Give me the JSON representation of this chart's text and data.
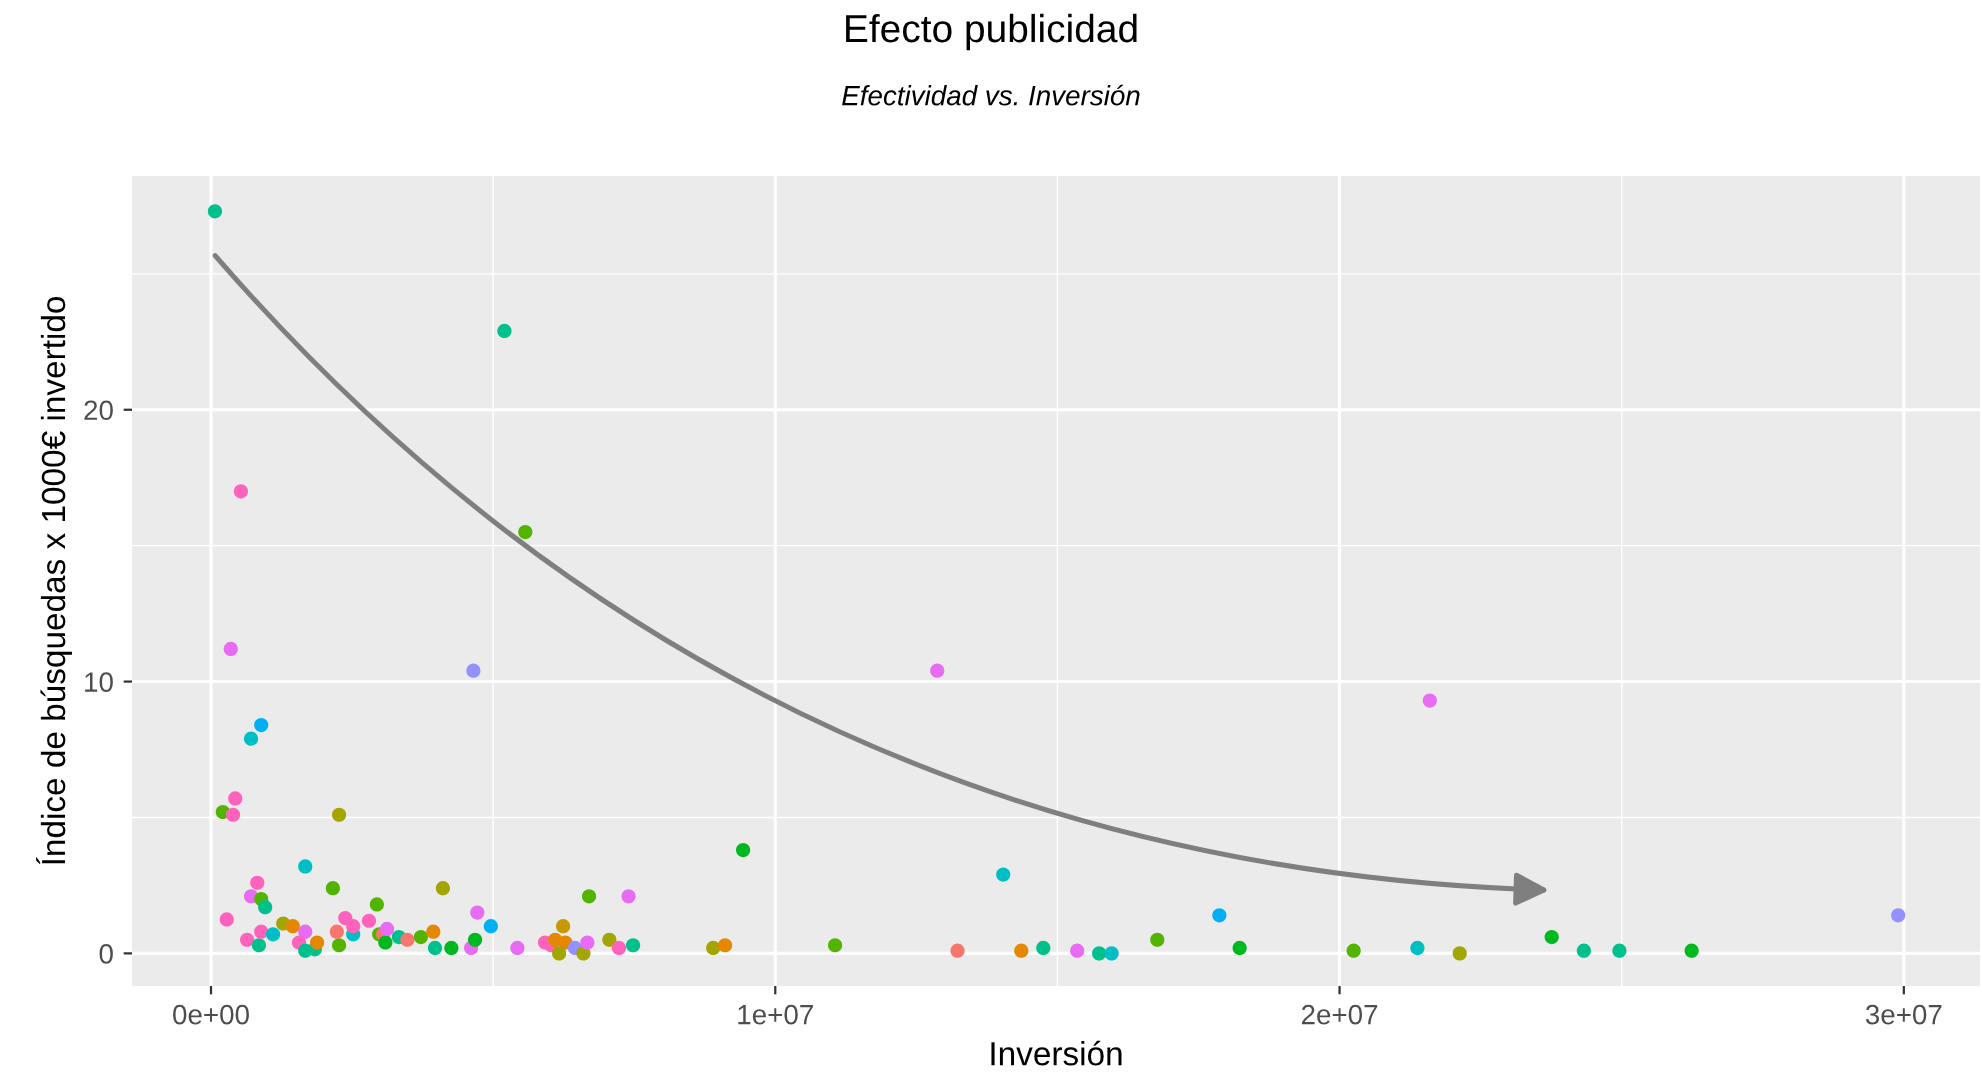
{
  "chart_data": {
    "type": "scatter",
    "title": "Efecto publicidad",
    "subtitle": "Efectividad vs. Inversión",
    "xlabel": "Inversión",
    "ylabel": "Índice de búsquedas x 1000€ invertido",
    "xlim": [
      -1400000,
      31350000
    ],
    "ylim": [
      -1.2,
      28.6
    ],
    "xticks": [
      {
        "value": 0,
        "label": "0e+00"
      },
      {
        "value": 10000000,
        "label": "1e+07"
      },
      {
        "value": 20000000,
        "label": "2e+07"
      },
      {
        "value": 30000000,
        "label": "3e+07"
      }
    ],
    "yticks": [
      0,
      10,
      20
    ],
    "grid": true,
    "marker": "circle",
    "x": [
      70000,
      5200000,
      5570000,
      530000,
      350000,
      4650000,
      12870000,
      21600000,
      890000,
      710000,
      430000,
      210000,
      390000,
      2270000,
      9430000,
      14040000,
      1670000,
      2160000,
      4110000,
      820000,
      710000,
      890000,
      960000,
      6700000,
      7400000,
      17870000,
      29900000,
      4720000,
      280000,
      640000,
      850000,
      890000,
      1100000,
      1280000,
      1450000,
      1670000,
      1560000,
      1670000,
      1840000,
      1880000,
      2270000,
      2380000,
      2230000,
      2520000,
      2520000,
      2800000,
      2940000,
      2980000,
      3050000,
      3090000,
      3120000,
      3330000,
      3480000,
      3720000,
      3940000,
      3970000,
      4260000,
      4610000,
      4680000,
      4960000,
      5430000,
      5920000,
      6030000,
      6100000,
      6240000,
      6280000,
      6170000,
      6450000,
      6600000,
      6670000,
      7060000,
      7230000,
      7480000,
      8900000,
      9110000,
      11060000,
      13230000,
      14360000,
      14750000,
      15350000,
      15740000,
      15960000,
      16770000,
      18230000,
      20250000,
      21380000,
      22130000,
      23760000,
      24330000,
      24960000,
      26240000
    ],
    "values": [
      27.3,
      22.9,
      15.5,
      17.0,
      11.2,
      10.4,
      10.4,
      9.3,
      8.4,
      7.9,
      5.7,
      5.2,
      5.1,
      5.1,
      3.8,
      2.9,
      3.2,
      2.4,
      2.4,
      2.6,
      2.1,
      2.0,
      1.7,
      2.1,
      2.1,
      1.4,
      1.4,
      1.5,
      1.25,
      0.5,
      0.3,
      0.8,
      0.7,
      1.1,
      1.0,
      0.8,
      0.4,
      0.1,
      0.15,
      0.4,
      0.3,
      1.3,
      0.8,
      0.7,
      1.0,
      1.2,
      1.8,
      0.7,
      0.7,
      0.4,
      0.9,
      0.6,
      0.5,
      0.6,
      0.8,
      0.2,
      0.2,
      0.2,
      0.5,
      1.0,
      0.2,
      0.4,
      0.3,
      0.5,
      1.0,
      0.4,
      0.0,
      0.2,
      0.0,
      0.4,
      0.5,
      0.2,
      0.3,
      0.2,
      0.3,
      0.3,
      0.1,
      0.1,
      0.2,
      0.1,
      0.0,
      0.0,
      0.5,
      0.2,
      0.1,
      0.2,
      0.0,
      0.6,
      0.1,
      0.1,
      0.1
    ],
    "colors": [
      "#00c08b",
      "#00c08b",
      "#53b400",
      "#ff62bc",
      "#e76bf3",
      "#9590ff",
      "#e76bf3",
      "#e76bf3",
      "#00b0f6",
      "#00bfc4",
      "#ff62bc",
      "#53b400",
      "#ff62bc",
      "#a3a500",
      "#00b81f",
      "#00bfc4",
      "#00bfc4",
      "#53b400",
      "#a3a500",
      "#ff62bc",
      "#e76bf3",
      "#53b400",
      "#00c08b",
      "#53b400",
      "#e76bf3",
      "#00b0f6",
      "#9590ff",
      "#e76bf3",
      "#ff62bc",
      "#ff62bc",
      "#00c08b",
      "#ff62bc",
      "#00bfc4",
      "#a3a500",
      "#e58700",
      "#e76bf3",
      "#ff62bc",
      "#00c08b",
      "#00c08b",
      "#e58700",
      "#53b400",
      "#ff62bc",
      "#f8766d",
      "#00bfc4",
      "#ff62bc",
      "#ff62bc",
      "#53b400",
      "#53b400",
      "#f8766d",
      "#00b81f",
      "#e76bf3",
      "#00c08b",
      "#f8766d",
      "#53b400",
      "#e58700",
      "#00c08b",
      "#00b81f",
      "#e76bf3",
      "#00b81f",
      "#00b0f6",
      "#e76bf3",
      "#ff62bc",
      "#ff62bc",
      "#e58700",
      "#c49a00",
      "#e58700",
      "#a3a500",
      "#9590ff",
      "#a3a500",
      "#e76bf3",
      "#a3a500",
      "#ff62bc",
      "#00c08b",
      "#a3a500",
      "#e58700",
      "#53b400",
      "#f8766d",
      "#e58700",
      "#00c08b",
      "#e76bf3",
      "#00c08b",
      "#00bfc4",
      "#53b400",
      "#00b81f",
      "#53b400",
      "#00bfc4",
      "#a3a500",
      "#00b81f",
      "#00c08b",
      "#00c08b",
      "#00b81f"
    ]
  }
}
